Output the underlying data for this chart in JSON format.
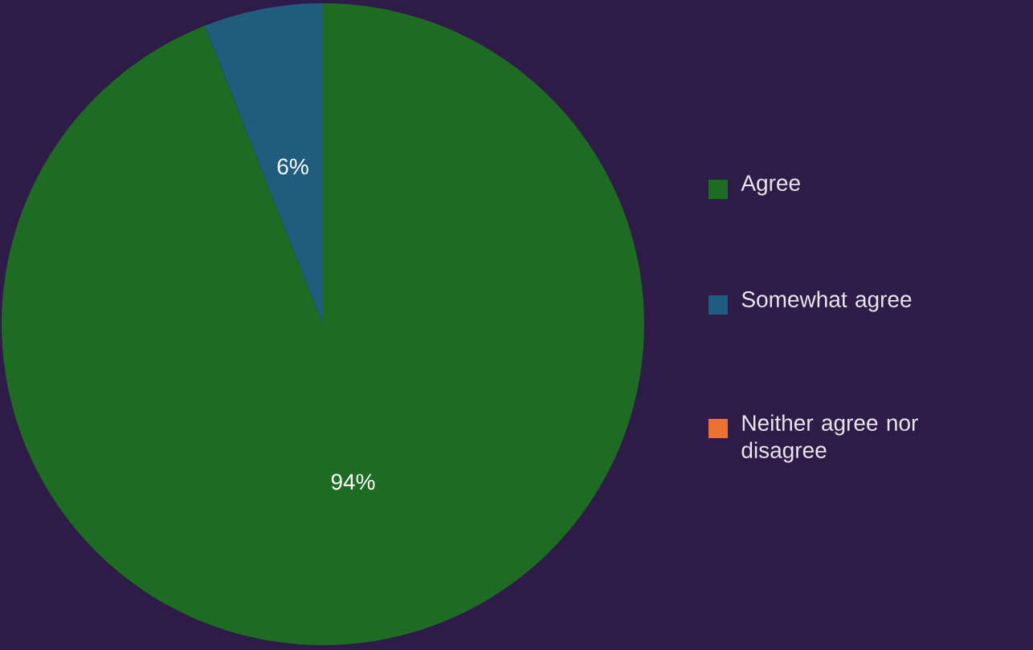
{
  "chart_data": {
    "type": "pie",
    "categories": [
      "Agree",
      "Somewhat agree",
      "Neither agree nor disagree"
    ],
    "values": [
      94,
      6,
      0
    ],
    "colors": [
      "#1e6b24",
      "#1f5c7e",
      "#e97132"
    ],
    "value_labels": [
      "94%",
      "6%",
      null
    ],
    "legend": "right"
  }
}
